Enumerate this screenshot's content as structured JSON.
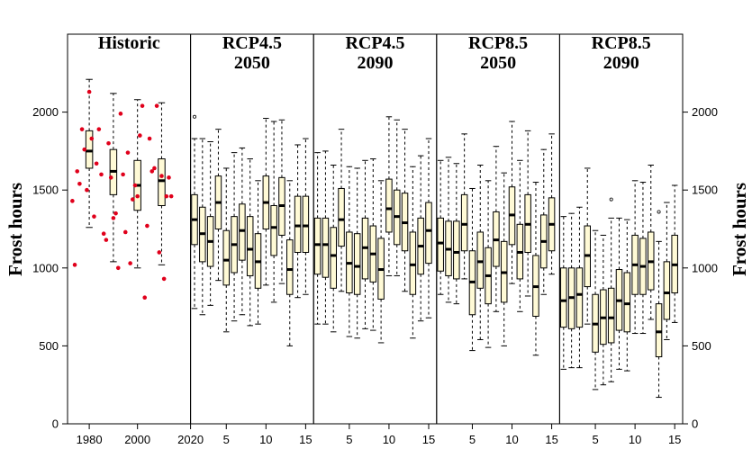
{
  "chart_data": {
    "type": "box",
    "ylabel_left": "Frost hours",
    "ylabel_right": "Frost hours",
    "ylim": [
      0,
      2500
    ],
    "y_ticks": [
      0,
      500,
      1000,
      1500,
      2000
    ],
    "box_fill": "#fffad6",
    "point_color": "#e0001b",
    "panels": [
      {
        "title_lines": [
          "Historic"
        ],
        "xlim": [
          1971,
          2022
        ],
        "x_ticks": [
          1980,
          2000
        ],
        "x_tick_labels": [
          "1980",
          "2000"
        ],
        "shared_tick_label": "2020",
        "points": [
          {
            "x": 1973,
            "y": 1430
          },
          {
            "x": 1974,
            "y": 1020
          },
          {
            "x": 1975,
            "y": 1620
          },
          {
            "x": 1976,
            "y": 1540
          },
          {
            "x": 1977,
            "y": 1890
          },
          {
            "x": 1978,
            "y": 1760
          },
          {
            "x": 1979,
            "y": 1500
          },
          {
            "x": 1980,
            "y": 2130
          },
          {
            "x": 1981,
            "y": 1830
          },
          {
            "x": 1982,
            "y": 1330
          },
          {
            "x": 1983,
            "y": 1670
          },
          {
            "x": 1984,
            "y": 1890
          },
          {
            "x": 1985,
            "y": 1600
          },
          {
            "x": 1986,
            "y": 1220
          },
          {
            "x": 1987,
            "y": 1180
          },
          {
            "x": 1988,
            "y": 1800
          },
          {
            "x": 1989,
            "y": 1580
          },
          {
            "x": 1990,
            "y": 1320
          },
          {
            "x": 1991,
            "y": 1350
          },
          {
            "x": 1992,
            "y": 1000
          },
          {
            "x": 1993,
            "y": 1990
          },
          {
            "x": 1994,
            "y": 1600
          },
          {
            "x": 1995,
            "y": 1230
          },
          {
            "x": 1996,
            "y": 1740
          },
          {
            "x": 1997,
            "y": 1030
          },
          {
            "x": 1998,
            "y": 1440
          },
          {
            "x": 1999,
            "y": 1530
          },
          {
            "x": 2000,
            "y": 1460
          },
          {
            "x": 2001,
            "y": 1850
          },
          {
            "x": 2002,
            "y": 2040
          },
          {
            "x": 2003,
            "y": 810
          },
          {
            "x": 2004,
            "y": 1270
          },
          {
            "x": 2005,
            "y": 1830
          },
          {
            "x": 2006,
            "y": 1620
          },
          {
            "x": 2007,
            "y": 1640
          },
          {
            "x": 2008,
            "y": 2040
          },
          {
            "x": 2009,
            "y": 1100
          },
          {
            "x": 2010,
            "y": 1590
          },
          {
            "x": 2011,
            "y": 930
          },
          {
            "x": 2012,
            "y": 1460
          },
          {
            "x": 2013,
            "y": 1580
          },
          {
            "x": 2014,
            "y": 1460
          }
        ],
        "boxes": [
          {
            "x": 1980,
            "min": 1260,
            "q1": 1640,
            "median": 1750,
            "q3": 1880,
            "max": 2210
          },
          {
            "x": 1990,
            "min": 1040,
            "q1": 1470,
            "median": 1620,
            "q3": 1760,
            "max": 2120
          },
          {
            "x": 2000,
            "min": 1000,
            "q1": 1370,
            "median": 1530,
            "q3": 1690,
            "max": 2080
          },
          {
            "x": 2010,
            "min": 1020,
            "q1": 1400,
            "median": 1560,
            "q3": 1700,
            "max": 2060
          }
        ]
      },
      {
        "title_lines": [
          "RCP4.5",
          "2050"
        ],
        "xlim": [
          0.5,
          16
        ],
        "x_ticks": [
          5,
          10,
          15
        ],
        "x_tick_labels": [
          "5",
          "10",
          "15"
        ],
        "boxes": [
          {
            "x": 1,
            "min": 740,
            "q1": 1150,
            "median": 1310,
            "q3": 1470,
            "max": 1830
          },
          {
            "x": 2,
            "min": 700,
            "q1": 1040,
            "median": 1220,
            "q3": 1390,
            "max": 1830
          },
          {
            "x": 3,
            "min": 760,
            "q1": 1010,
            "median": 1170,
            "q3": 1330,
            "max": 1810
          },
          {
            "x": 4,
            "min": 920,
            "q1": 1250,
            "median": 1420,
            "q3": 1590,
            "max": 1890
          },
          {
            "x": 5,
            "min": 590,
            "q1": 890,
            "median": 1050,
            "q3": 1240,
            "max": 1640
          },
          {
            "x": 6,
            "min": 660,
            "q1": 970,
            "median": 1150,
            "q3": 1330,
            "max": 1740
          },
          {
            "x": 7,
            "min": 700,
            "q1": 1050,
            "median": 1240,
            "q3": 1410,
            "max": 1770
          },
          {
            "x": 8,
            "min": 630,
            "q1": 950,
            "median": 1120,
            "q3": 1330,
            "max": 1700
          },
          {
            "x": 9,
            "min": 640,
            "q1": 870,
            "median": 1040,
            "q3": 1220,
            "max": 1560
          },
          {
            "x": 10,
            "min": 890,
            "q1": 1250,
            "median": 1420,
            "q3": 1590,
            "max": 1960
          },
          {
            "x": 11,
            "min": 780,
            "q1": 1080,
            "median": 1260,
            "q3": 1400,
            "max": 1940
          },
          {
            "x": 12,
            "min": 900,
            "q1": 1210,
            "median": 1400,
            "q3": 1580,
            "max": 1950
          },
          {
            "x": 13,
            "min": 500,
            "q1": 830,
            "median": 990,
            "q3": 1180,
            "max": 1560
          },
          {
            "x": 14,
            "min": 810,
            "q1": 1100,
            "median": 1270,
            "q3": 1460,
            "max": 1790
          },
          {
            "x": 15,
            "min": 830,
            "q1": 1100,
            "median": 1270,
            "q3": 1460,
            "max": 1830
          }
        ],
        "outliers": [
          {
            "x": 1,
            "y": 1970
          }
        ]
      },
      {
        "title_lines": [
          "RCP4.5",
          "2090"
        ],
        "xlim": [
          0.5,
          16
        ],
        "x_ticks": [
          5,
          10,
          15
        ],
        "x_tick_labels": [
          "5",
          "10",
          "15"
        ],
        "boxes": [
          {
            "x": 1,
            "min": 640,
            "q1": 960,
            "median": 1150,
            "q3": 1320,
            "max": 1740
          },
          {
            "x": 2,
            "min": 640,
            "q1": 940,
            "median": 1150,
            "q3": 1320,
            "max": 1750
          },
          {
            "x": 3,
            "min": 590,
            "q1": 870,
            "median": 1080,
            "q3": 1260,
            "max": 1660
          },
          {
            "x": 4,
            "min": 850,
            "q1": 1140,
            "median": 1310,
            "q3": 1510,
            "max": 1890
          },
          {
            "x": 5,
            "min": 560,
            "q1": 840,
            "median": 1030,
            "q3": 1230,
            "max": 1650
          },
          {
            "x": 6,
            "min": 550,
            "q1": 830,
            "median": 1010,
            "q3": 1220,
            "max": 1640
          },
          {
            "x": 7,
            "min": 610,
            "q1": 930,
            "median": 1130,
            "q3": 1320,
            "max": 1690
          },
          {
            "x": 8,
            "min": 600,
            "q1": 910,
            "median": 1090,
            "q3": 1270,
            "max": 1700
          },
          {
            "x": 9,
            "min": 520,
            "q1": 800,
            "median": 990,
            "q3": 1190,
            "max": 1560
          },
          {
            "x": 10,
            "min": 950,
            "q1": 1230,
            "median": 1380,
            "q3": 1570,
            "max": 1970
          },
          {
            "x": 11,
            "min": 950,
            "q1": 1150,
            "median": 1330,
            "q3": 1500,
            "max": 1950
          },
          {
            "x": 12,
            "min": 850,
            "q1": 1110,
            "median": 1290,
            "q3": 1480,
            "max": 1890
          },
          {
            "x": 13,
            "min": 550,
            "q1": 830,
            "median": 1020,
            "q3": 1230,
            "max": 1650
          },
          {
            "x": 14,
            "min": 660,
            "q1": 960,
            "median": 1140,
            "q3": 1320,
            "max": 1720
          },
          {
            "x": 15,
            "min": 680,
            "q1": 1030,
            "median": 1240,
            "q3": 1420,
            "max": 1830
          }
        ],
        "outliers": []
      },
      {
        "title_lines": [
          "RCP8.5",
          "2050"
        ],
        "xlim": [
          0.5,
          16
        ],
        "x_ticks": [
          5,
          10,
          15
        ],
        "x_tick_labels": [
          "5",
          "10",
          "15"
        ],
        "boxes": [
          {
            "x": 1,
            "min": 830,
            "q1": 980,
            "median": 1160,
            "q3": 1320,
            "max": 1690
          },
          {
            "x": 2,
            "min": 780,
            "q1": 950,
            "median": 1120,
            "q3": 1300,
            "max": 1710
          },
          {
            "x": 3,
            "min": 770,
            "q1": 930,
            "median": 1100,
            "q3": 1300,
            "max": 1670
          },
          {
            "x": 4,
            "min": 930,
            "q1": 1110,
            "median": 1280,
            "q3": 1470,
            "max": 1860
          },
          {
            "x": 5,
            "min": 470,
            "q1": 700,
            "median": 910,
            "q3": 1110,
            "max": 1510
          },
          {
            "x": 6,
            "min": 540,
            "q1": 870,
            "median": 1040,
            "q3": 1230,
            "max": 1660
          },
          {
            "x": 7,
            "min": 490,
            "q1": 770,
            "median": 950,
            "q3": 1130,
            "max": 1560
          },
          {
            "x": 8,
            "min": 720,
            "q1": 1010,
            "median": 1180,
            "q3": 1360,
            "max": 1780
          },
          {
            "x": 9,
            "min": 500,
            "q1": 780,
            "median": 970,
            "q3": 1170,
            "max": 1610
          },
          {
            "x": 10,
            "min": 900,
            "q1": 1150,
            "median": 1340,
            "q3": 1520,
            "max": 1940
          },
          {
            "x": 11,
            "min": 720,
            "q1": 930,
            "median": 1100,
            "q3": 1280,
            "max": 1690
          },
          {
            "x": 12,
            "min": 820,
            "q1": 1100,
            "median": 1280,
            "q3": 1470,
            "max": 1880
          },
          {
            "x": 13,
            "min": 440,
            "q1": 690,
            "median": 880,
            "q3": 1080,
            "max": 1550
          },
          {
            "x": 14,
            "min": 830,
            "q1": 1000,
            "median": 1170,
            "q3": 1340,
            "max": 1760
          },
          {
            "x": 15,
            "min": 960,
            "q1": 1110,
            "median": 1280,
            "q3": 1450,
            "max": 1860
          }
        ],
        "outliers": []
      },
      {
        "title_lines": [
          "RCP8.5",
          "2090"
        ],
        "xlim": [
          0.5,
          16
        ],
        "x_ticks": [
          5,
          10,
          15
        ],
        "x_tick_labels": [
          "5",
          "10",
          "15"
        ],
        "boxes": [
          {
            "x": 1,
            "min": 350,
            "q1": 620,
            "median": 790,
            "q3": 1000,
            "max": 1330
          },
          {
            "x": 2,
            "min": 360,
            "q1": 610,
            "median": 810,
            "q3": 1000,
            "max": 1350
          },
          {
            "x": 3,
            "min": 360,
            "q1": 620,
            "median": 830,
            "q3": 1000,
            "max": 1390
          },
          {
            "x": 4,
            "min": 640,
            "q1": 880,
            "median": 1080,
            "q3": 1270,
            "max": 1640
          },
          {
            "x": 5,
            "min": 220,
            "q1": 460,
            "median": 640,
            "q3": 830,
            "max": 1240
          },
          {
            "x": 6,
            "min": 250,
            "q1": 510,
            "median": 680,
            "q3": 860,
            "max": 1210
          },
          {
            "x": 7,
            "min": 270,
            "q1": 520,
            "median": 680,
            "q3": 870,
            "max": 1320
          },
          {
            "x": 8,
            "min": 350,
            "q1": 600,
            "median": 790,
            "q3": 990,
            "max": 1320
          },
          {
            "x": 9,
            "min": 340,
            "q1": 590,
            "median": 770,
            "q3": 970,
            "max": 1310
          },
          {
            "x": 10,
            "min": 580,
            "q1": 830,
            "median": 1020,
            "q3": 1210,
            "max": 1560
          },
          {
            "x": 11,
            "min": 580,
            "q1": 830,
            "median": 1010,
            "q3": 1190,
            "max": 1550
          },
          {
            "x": 12,
            "min": 670,
            "q1": 860,
            "median": 1040,
            "q3": 1230,
            "max": 1660
          },
          {
            "x": 13,
            "min": 170,
            "q1": 430,
            "median": 590,
            "q3": 770,
            "max": 1170
          },
          {
            "x": 14,
            "min": 540,
            "q1": 670,
            "median": 840,
            "q3": 1040,
            "max": 1420
          },
          {
            "x": 15,
            "min": 650,
            "q1": 840,
            "median": 1020,
            "q3": 1210,
            "max": 1530
          }
        ],
        "outliers": [
          {
            "x": 7,
            "y": 1440
          },
          {
            "x": 13,
            "y": 1360
          }
        ]
      }
    ]
  }
}
